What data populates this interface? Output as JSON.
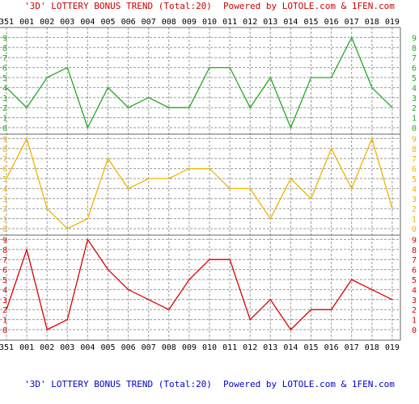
{
  "header": {
    "title_part": "'3D' LOTTERY BONUS TREND (Total:20)",
    "powered_part": "Powered by LOTOLE.com & 1FEN.com"
  },
  "footer": {
    "title_part": "'3D' LOTTERY BONUS TREND (Total:20)",
    "powered_part": "Powered by LOTOLE.com & 1FEN.com"
  },
  "colors": {
    "title_red": "#cc0000",
    "footer_blue": "#0000cc",
    "axis_text": "#000000",
    "grid": "#999999",
    "band_edge": "#666666",
    "green": "#22aa22",
    "orange": "#f0b400",
    "red": "#dd0000"
  },
  "chart_data": {
    "type": "line",
    "title": "'3D' LOTTERY BONUS TREND (Total:20)",
    "categories": [
      "351",
      "001",
      "002",
      "003",
      "004",
      "005",
      "006",
      "007",
      "008",
      "009",
      "010",
      "011",
      "012",
      "013",
      "014",
      "015",
      "016",
      "017",
      "018",
      "019"
    ],
    "y_ticks": [
      "0",
      "1",
      "2",
      "3",
      "4",
      "5",
      "6",
      "7",
      "8",
      "9"
    ],
    "ylim": [
      0,
      9
    ],
    "grid": true,
    "series": [
      {
        "band": "top",
        "color": "#22aa22",
        "values": [
          4,
          2,
          5,
          6,
          0,
          4,
          2,
          3,
          2,
          2,
          6,
          6,
          2,
          5,
          0,
          5,
          5,
          9,
          4,
          2
        ]
      },
      {
        "band": "middle",
        "color": "#f0b400",
        "values": [
          5,
          9,
          2,
          0,
          1,
          7,
          4,
          5,
          5,
          6,
          6,
          4,
          4,
          1,
          5,
          3,
          8,
          4,
          9,
          2
        ]
      },
      {
        "band": "bottom",
        "color": "#dd0000",
        "values": [
          2,
          8,
          0,
          1,
          9,
          6,
          4,
          3,
          2,
          5,
          7,
          7,
          1,
          3,
          0,
          2,
          2,
          5,
          4,
          3
        ]
      }
    ]
  }
}
